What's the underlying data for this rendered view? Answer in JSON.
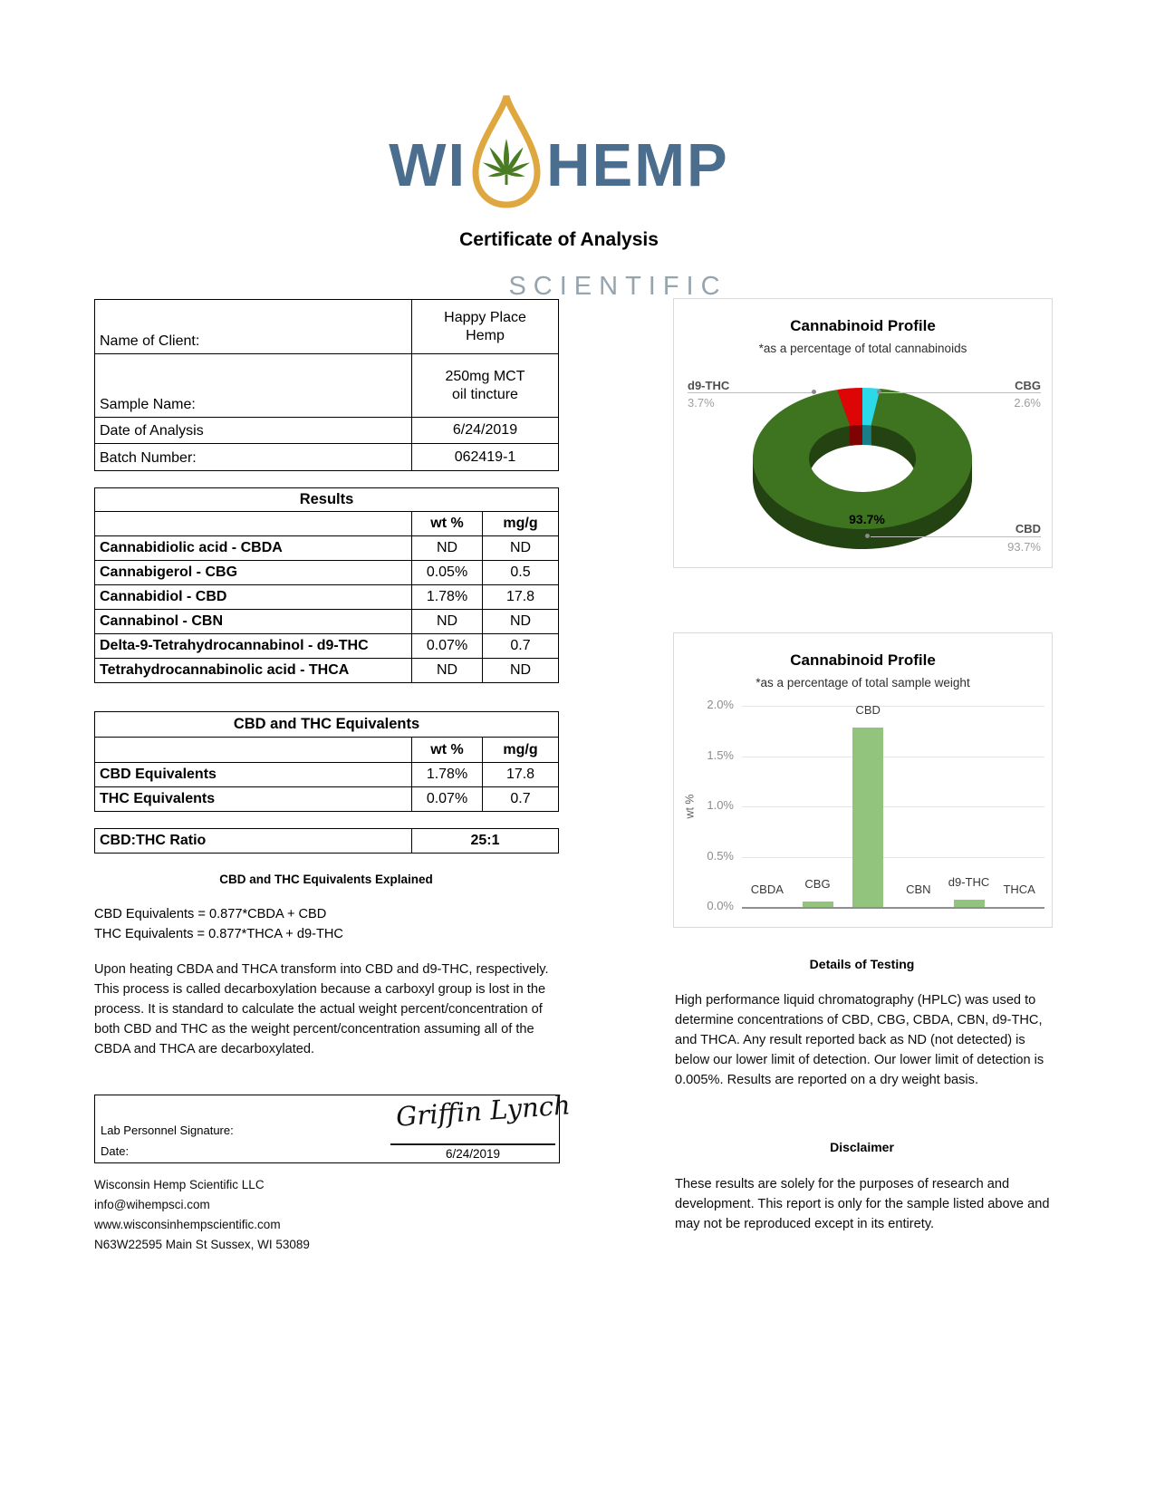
{
  "page": {
    "title": "Certificate of Analysis"
  },
  "logo": {
    "wi": "WI",
    "hemp": "HEMP",
    "scientific": "SCIENTIFIC",
    "text_color": "#4c6e8e",
    "droplet_color": "#dfa73f",
    "leaf_color": "#4a7c23",
    "scientific_color": "#96a4ae"
  },
  "client_table": {
    "rows": [
      {
        "label": "Name of Client:",
        "value": "Happy Place\nHemp"
      },
      {
        "label": "Sample Name:",
        "value": "250mg MCT\noil tincture"
      },
      {
        "label": "Date of Analysis",
        "value": "6/24/2019"
      },
      {
        "label": "Batch Number:",
        "value": "062419-1"
      }
    ]
  },
  "results_table": {
    "title": "Results",
    "columns": [
      "wt %",
      "mg/g"
    ],
    "rows": [
      {
        "label": "Cannabidiolic acid - CBDA",
        "wt": "ND",
        "mg": "ND"
      },
      {
        "label": "Cannabigerol - CBG",
        "wt": "0.05%",
        "mg": "0.5"
      },
      {
        "label": "Cannabidiol - CBD",
        "wt": "1.78%",
        "mg": "17.8"
      },
      {
        "label": "Cannabinol - CBN",
        "wt": "ND",
        "mg": "ND"
      },
      {
        "label": "Delta-9-Tetrahydrocannabinol - d9-THC",
        "wt": "0.07%",
        "mg": "0.7"
      },
      {
        "label": "Tetrahydrocannabinolic acid - THCA",
        "wt": "ND",
        "mg": "ND"
      }
    ]
  },
  "equivalents_table": {
    "title": "CBD and THC Equivalents",
    "columns": [
      "wt %",
      "mg/g"
    ],
    "rows": [
      {
        "label": "CBD Equivalents",
        "wt": "1.78%",
        "mg": "17.8"
      },
      {
        "label": "THC Equivalents",
        "wt": "0.07%",
        "mg": "0.7"
      }
    ]
  },
  "ratio": {
    "label": "CBD:THC Ratio",
    "value": "25:1"
  },
  "explained": {
    "heading": "CBD and THC Equivalents Explained",
    "formulas": [
      "CBD Equivalents = 0.877*CBDA + CBD",
      "THC Equivalents = 0.877*THCA + d9-THC"
    ],
    "paragraph": "Upon heating CBDA and THCA transform into CBD and d9-THC, respectively. This process is called decarboxylation because a carboxyl group is lost in the process. It is standard to calculate the actual weight percent/concentration of both CBD and THC as the weight percent/concentration assuming all of the CBDA and THCA are decarboxylated."
  },
  "signature": {
    "label": "Lab Personnel Signature:",
    "name": "Griffin Lynch",
    "date_label": "Date:",
    "date": "6/24/2019"
  },
  "footer": {
    "lines": [
      "Wisconsin Hemp Scientific LLC",
      "info@wihempsci.com",
      "www.wisconsinhempscientific.com",
      "N63W22595 Main St Sussex, WI 53089"
    ]
  },
  "details_of_testing": {
    "heading": "Details of Testing",
    "paragraph": "High performance liquid chromatography (HPLC) was used to determine concentrations of CBD, CBG, CBDA, CBN, d9-THC, and THCA. Any result reported back as ND (not detected) is below our lower limit of detection. Our lower limit of detection is 0.005%. Results are reported on a dry weight basis."
  },
  "disclaimer": {
    "heading": "Disclaimer",
    "paragraph": "These results are solely for the purposes of research and development. This report is only for the sample listed above and may not be reproduced except in its entirety."
  },
  "chart_data": [
    {
      "type": "pie",
      "style": "3d-donut",
      "title": "Cannabinoid Profile",
      "subtitle": "*as a percentage of total cannabinoids",
      "labels": [
        "CBG",
        "CBD",
        "d9-THC"
      ],
      "values": [
        2.6,
        93.7,
        3.7
      ],
      "colors": [
        "#2bd9e8",
        "#3e7320",
        "#dd0505"
      ],
      "center_label": "93.7%",
      "legend_position": "callouts"
    },
    {
      "type": "bar",
      "title": "Cannabinoid Profile",
      "subtitle": "*as a percentage of total sample weight",
      "categories": [
        "CBDA",
        "CBG",
        "CBD",
        "CBN",
        "d9-THC",
        "THCA"
      ],
      "values": [
        0,
        0.05,
        1.78,
        0,
        0.07,
        0
      ],
      "xlabel": "",
      "ylabel": "wt %",
      "ylim": [
        0,
        2.0
      ],
      "yticks": [
        "2.0%",
        "1.5%",
        "1.0%",
        "0.5%",
        "0.0%"
      ],
      "bar_color": "#93c47d",
      "grid": true
    }
  ]
}
